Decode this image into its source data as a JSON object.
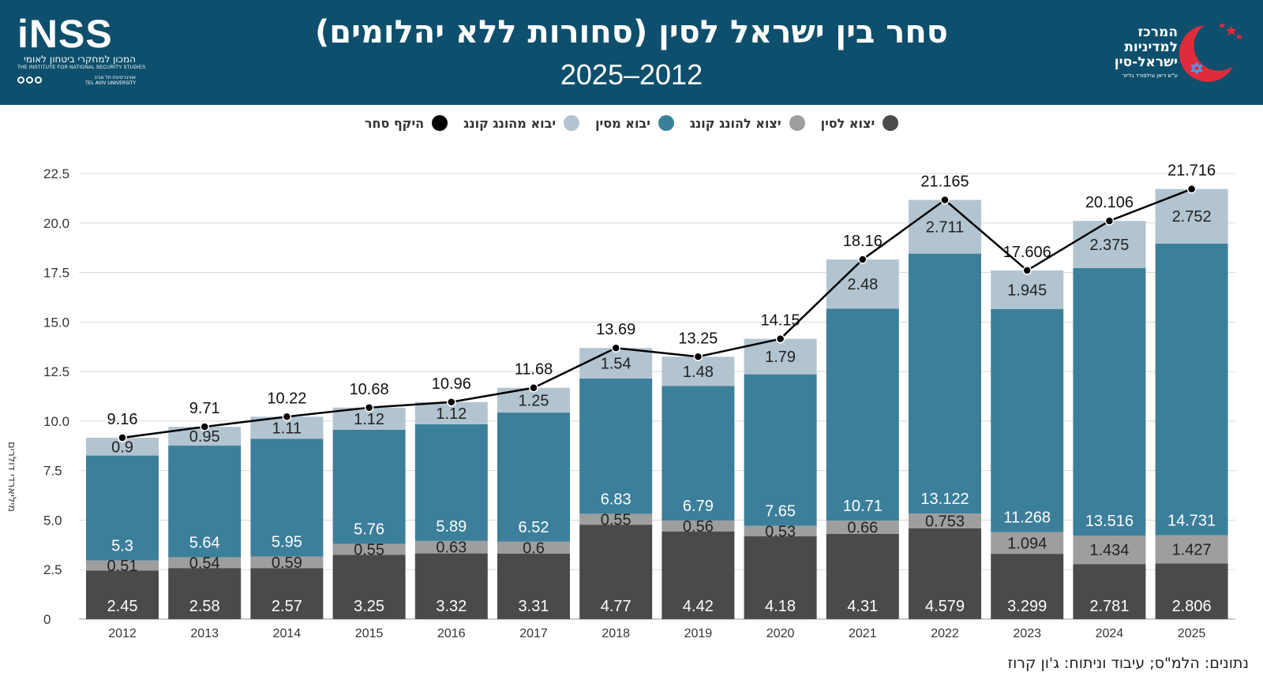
{
  "header": {
    "title": "סחר בין ישראל לסין (סחורות ללא יהלומים)",
    "subtitle": "2025–2012"
  },
  "logo_inss": {
    "mark": "iNSS",
    "hebrew": "המכון למחקרי ביטחון לאומי",
    "english": "THE INSTITUTE FOR NATIONAL SECURITY STUDIES",
    "univ_he": "אוניברסיטת תל אביב",
    "univ_en": "TEL AVIV UNIVERSITY"
  },
  "logo_center": {
    "line1": "המרכז",
    "line2": "למדיניות",
    "line3": "ישראל-סין",
    "sub": "ע\"ש דיאן וגילפורד גליזר"
  },
  "legend": [
    {
      "label": "יצוא לסין",
      "color": "#4a4a4a"
    },
    {
      "label": "יצוא להונג קונג",
      "color": "#9e9e9e"
    },
    {
      "label": "יבוא מסין",
      "color": "#3c7f9b"
    },
    {
      "label": "יבוא מהונג קונג",
      "color": "#b2c4d0"
    },
    {
      "label": "היקף סחר",
      "color": "#000000"
    }
  ],
  "source": "נתונים: הלמ\"ס; עיבוד וניתוח: ג'ון קרוז",
  "chart_data": {
    "type": "bar",
    "stacked": true,
    "ylabel": "מיליארדי דולרים",
    "ylim": [
      0,
      22.5
    ],
    "yticks": [
      "0",
      "2.5",
      "5.0",
      "7.5",
      "10.0",
      "12.5",
      "15.0",
      "17.5",
      "20.0",
      "22.5"
    ],
    "ytick_values": [
      0,
      2.5,
      5,
      7.5,
      10,
      12.5,
      15,
      17.5,
      20,
      22.5
    ],
    "categories": [
      "2012",
      "2013",
      "2014",
      "2015",
      "2016",
      "2017",
      "2018",
      "2019",
      "2020",
      "2021",
      "2022",
      "2023",
      "2024",
      "2025"
    ],
    "series": [
      {
        "name": "יצוא לסין",
        "color": "#4a4a4a",
        "label_color": "#ffffff",
        "values": [
          2.45,
          2.58,
          2.57,
          3.25,
          3.32,
          3.31,
          4.77,
          4.42,
          4.18,
          4.31,
          4.579,
          3.299,
          2.781,
          2.806
        ],
        "labels": [
          "2.45",
          "2.58",
          "2.57",
          "3.25",
          "3.32",
          "3.31",
          "4.77",
          "4.42",
          "4.18",
          "4.31",
          "4.579",
          "3.299",
          "2.781",
          "2.806"
        ]
      },
      {
        "name": "יצוא להונג קונג",
        "color": "#9e9e9e",
        "label_color": "#222222",
        "values": [
          0.51,
          0.54,
          0.59,
          0.55,
          0.63,
          0.6,
          0.55,
          0.56,
          0.53,
          0.66,
          0.753,
          1.094,
          1.434,
          1.427
        ],
        "labels": [
          "0.51",
          "0.54",
          "0.59",
          "0.55",
          "0.63",
          "0.6",
          "0.55",
          "0.56",
          "0.53",
          "0.66",
          "0.753",
          "1.094",
          "1.434",
          "1.427"
        ]
      },
      {
        "name": "יבוא מסין",
        "color": "#3c7f9b",
        "label_color": "#ffffff",
        "values": [
          5.3,
          5.64,
          5.95,
          5.76,
          5.89,
          6.52,
          6.83,
          6.79,
          7.65,
          10.71,
          13.122,
          11.268,
          13.516,
          14.731
        ],
        "labels": [
          "5.3",
          "5.64",
          "5.95",
          "5.76",
          "5.89",
          "6.52",
          "6.83",
          "6.79",
          "7.65",
          "10.71",
          "13.122",
          "11.268",
          "13.516",
          "14.731"
        ]
      },
      {
        "name": "יבוא מהונג קונג",
        "color": "#b2c4d0",
        "label_color": "#222222",
        "values": [
          0.9,
          0.95,
          1.11,
          1.12,
          1.12,
          1.25,
          1.54,
          1.48,
          1.79,
          2.48,
          2.711,
          1.945,
          2.375,
          2.752
        ],
        "labels": [
          "0.9",
          "0.95",
          "1.11",
          "1.12",
          "1.12",
          "1.25",
          "1.54",
          "1.48",
          "1.79",
          "2.48",
          "2.711",
          "1.945",
          "2.375",
          "2.752"
        ]
      }
    ],
    "line": {
      "name": "היקף סחר",
      "color": "#000000",
      "values": [
        9.16,
        9.71,
        10.22,
        10.68,
        10.96,
        11.68,
        13.69,
        13.25,
        14.15,
        18.16,
        21.165,
        17.606,
        20.106,
        21.716
      ],
      "labels": [
        "9.16",
        "9.71",
        "10.22",
        "10.68",
        "10.96",
        "11.68",
        "13.69",
        "13.25",
        "14.15",
        "18.16",
        "21.165",
        "17.606",
        "20.106",
        "21.716"
      ]
    }
  }
}
